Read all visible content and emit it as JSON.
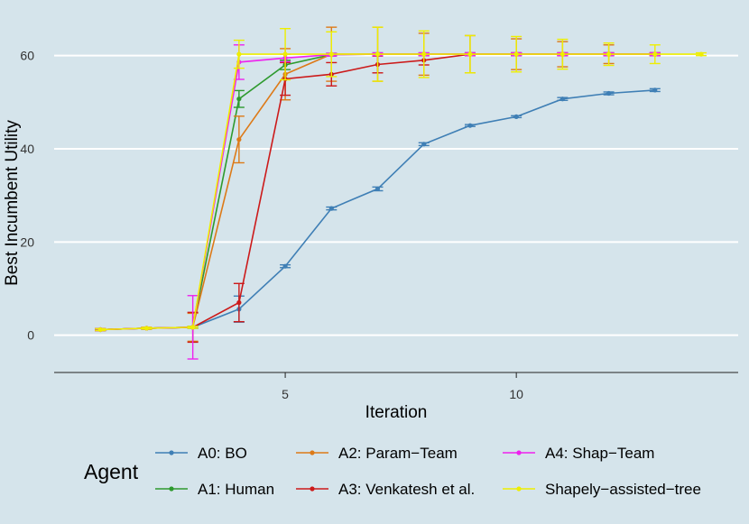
{
  "chart_data": {
    "type": "line",
    "title": "",
    "xlabel": "Iteration",
    "ylabel": "Best Incumbent Utility",
    "xlim": [
      0,
      14.8
    ],
    "ylim": [
      -8,
      70
    ],
    "xticks": [
      5,
      10
    ],
    "yticks": [
      0,
      20,
      40,
      60
    ],
    "grid": "horizontal-only",
    "legend_title": "Agent",
    "legend_position": "bottom",
    "series": [
      {
        "name": "A0: BO",
        "color": "#3f7fb5",
        "x": [
          1,
          2,
          3,
          4,
          5,
          6,
          7,
          8,
          9,
          10,
          11,
          12,
          13
        ],
        "y": [
          1.2,
          1.5,
          1.7,
          5.6,
          14.8,
          27.2,
          31.4,
          41.0,
          45.0,
          46.9,
          50.7,
          51.9,
          52.6
        ],
        "err": [
          0.2,
          0.2,
          0.2,
          2.8,
          0.3,
          0.3,
          0.4,
          0.3,
          0.2,
          0.2,
          0.3,
          0.3,
          0.3
        ]
      },
      {
        "name": "A1: Human",
        "color": "#2e9a2e",
        "x": [
          1,
          2,
          3,
          4,
          5,
          6,
          7,
          8,
          9,
          10,
          11,
          12,
          13
        ],
        "y": [
          1.2,
          1.5,
          1.7,
          50.7,
          58.0,
          60.2,
          60.3,
          60.3,
          60.3,
          60.3,
          60.3,
          60.3,
          60.3
        ],
        "err": [
          0.2,
          0.2,
          0.2,
          1.8,
          1.0,
          0.3,
          0.3,
          0.3,
          0.3,
          0.3,
          0.3,
          0.3,
          0.3
        ]
      },
      {
        "name": "A2: Param−Team",
        "color": "#dd7a18",
        "x": [
          1,
          2,
          3,
          4,
          5,
          6,
          7,
          8,
          9,
          10,
          11,
          12,
          13
        ],
        "y": [
          1.2,
          1.5,
          1.7,
          42.0,
          56.0,
          60.3,
          60.3,
          60.3,
          60.3,
          60.3,
          60.3,
          60.3,
          60.3
        ],
        "err": [
          0.2,
          0.2,
          3.0,
          5.0,
          5.5,
          5.8,
          5.8,
          4.5,
          4.0,
          3.3,
          2.7,
          2.0,
          0.3
        ]
      },
      {
        "name": "A3: Venkatesh et al.",
        "color": "#cc1a1a",
        "x": [
          1,
          2,
          3,
          4,
          5,
          6,
          7,
          8,
          9,
          10,
          11,
          12,
          13
        ],
        "y": [
          1.2,
          1.5,
          1.7,
          7.0,
          55.0,
          56.0,
          58.1,
          59.0,
          60.3,
          60.3,
          60.3,
          60.3,
          60.3
        ],
        "err": [
          0.2,
          0.2,
          3.2,
          4.1,
          3.5,
          2.5,
          1.8,
          1.0,
          0.3,
          0.3,
          0.3,
          0.3,
          0.3
        ]
      },
      {
        "name": "A4: Shap−Team",
        "color": "#ee22ee",
        "x": [
          1,
          2,
          3,
          4,
          5,
          6,
          7,
          8,
          9,
          10,
          11,
          12,
          13
        ],
        "y": [
          1.2,
          1.5,
          1.7,
          58.6,
          59.5,
          60.2,
          60.3,
          60.3,
          60.3,
          60.3,
          60.3,
          60.3,
          60.3
        ],
        "err": [
          0.2,
          0.2,
          6.8,
          3.7,
          0.8,
          0.3,
          0.3,
          0.3,
          0.3,
          0.3,
          0.3,
          0.3,
          0.3
        ]
      },
      {
        "name": "Shapely−assisted−tree",
        "color": "#eeee00",
        "x": [
          1,
          2,
          3,
          4,
          5,
          6,
          7,
          8,
          9,
          10,
          11,
          12,
          13,
          14
        ],
        "y": [
          1.2,
          1.5,
          1.7,
          60.3,
          60.3,
          60.3,
          60.3,
          60.3,
          60.3,
          60.3,
          60.3,
          60.3,
          60.3,
          60.3
        ],
        "err": [
          0.2,
          0.2,
          0.2,
          3.0,
          5.5,
          4.8,
          5.8,
          5.0,
          4.0,
          3.8,
          3.2,
          2.4,
          2.0,
          0.3
        ]
      }
    ]
  }
}
